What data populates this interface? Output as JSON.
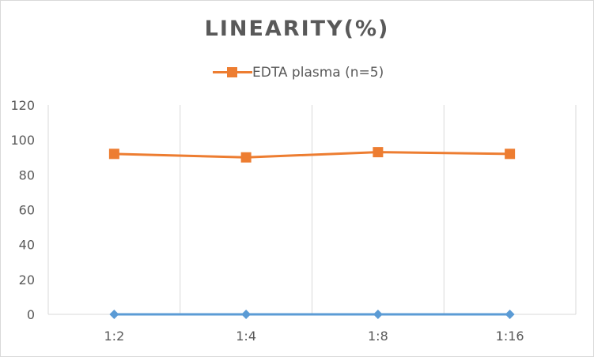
{
  "chart_data": {
    "type": "line",
    "title": "LINEARITY(%)",
    "xlabel": "",
    "ylabel": "",
    "categories": [
      "1:2",
      "1:4",
      "1:8",
      "1:16"
    ],
    "ylim": [
      0,
      120
    ],
    "yticks": [
      0,
      20,
      40,
      60,
      80,
      100,
      120
    ],
    "grid": "vertical",
    "legend_position": "top",
    "series": [
      {
        "name": "EDTA plasma (n=5)",
        "values": [
          92,
          90,
          93,
          92
        ],
        "color": "#ed7d31",
        "marker": "square",
        "in_legend": true
      },
      {
        "values": [
          0,
          0,
          0,
          0
        ],
        "color": "#5b9bd5",
        "marker": "diamond",
        "in_legend": false
      }
    ]
  }
}
